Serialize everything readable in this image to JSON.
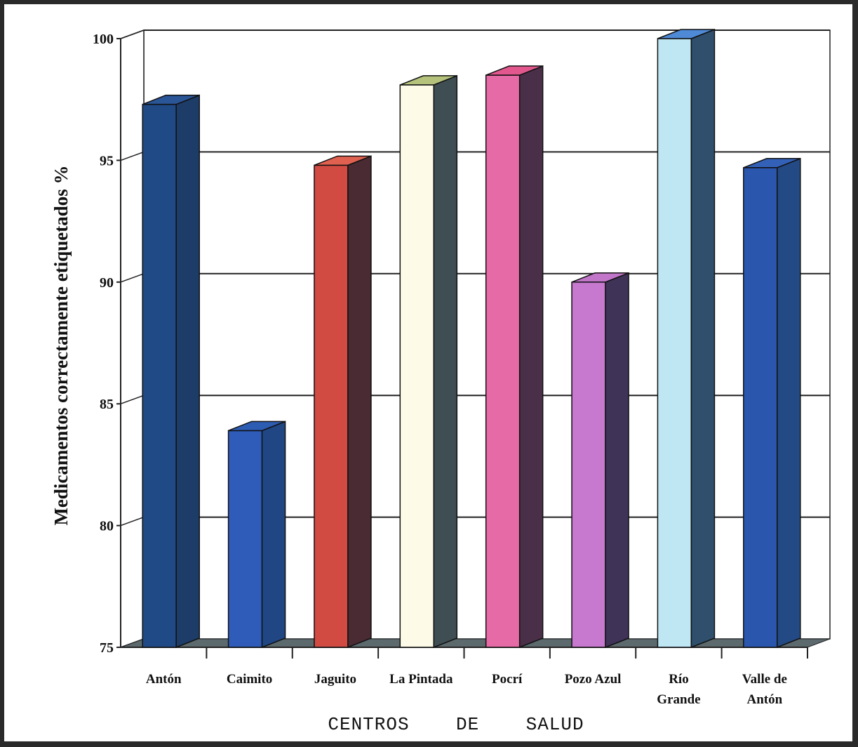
{
  "chart_data": {
    "type": "bar",
    "style": "3d",
    "categories": [
      [
        "Antón"
      ],
      [
        "Caimito"
      ],
      [
        "Jaguito"
      ],
      [
        "La Pintada"
      ],
      [
        "Pocrí"
      ],
      [
        "Pozo Azul"
      ],
      [
        "Río",
        "Grande"
      ],
      [
        "Valle de",
        "Antón"
      ]
    ],
    "values": [
      97.3,
      83.9,
      94.8,
      98.1,
      98.5,
      90.0,
      100.0,
      94.7
    ],
    "colors": [
      "#1f4a86",
      "#2f5cb8",
      "#d24b43",
      "#fdfbe8",
      "#e66aa6",
      "#c778cf",
      "#bfe6f3",
      "#2b56ad"
    ],
    "side_colors": [
      "#1d3c68",
      "#204784",
      "#4a2a33",
      "#3f4e52",
      "#4a2f48",
      "#3f3358",
      "#2f4f6d",
      "#244a86"
    ],
    "top_colors": [
      "#2a5596",
      "#2d5cb3",
      "#e0614f",
      "#b4c27c",
      "#e2588e",
      "#c176c9",
      "#4f8ad6",
      "#3361b8"
    ],
    "title": "",
    "xlabel": "CENTROS    DE    SALUD",
    "ylabel": "Medicamentos correctamente etiquetados %",
    "ylim": [
      75,
      100
    ],
    "yticks": [
      "75",
      "80",
      "85",
      "90",
      "95",
      "100"
    ],
    "grid": true,
    "legend": "none"
  }
}
